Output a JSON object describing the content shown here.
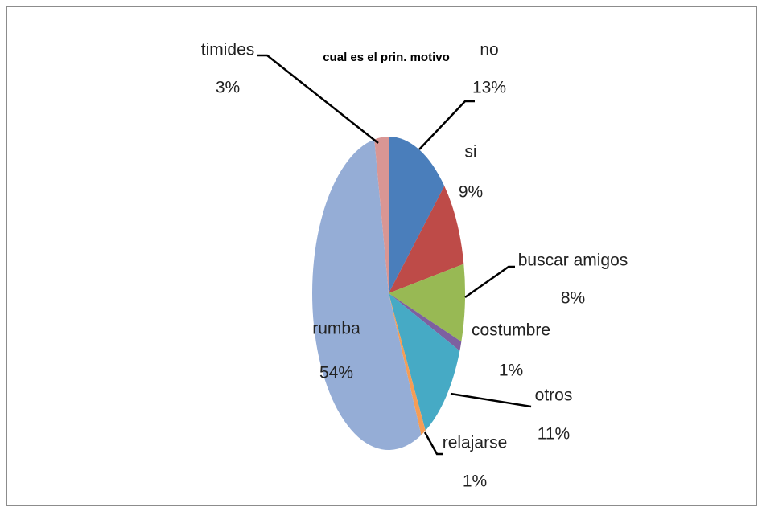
{
  "chart_data": {
    "type": "pie",
    "title": "cual es el prin. motivo",
    "categories": [
      "no",
      "si",
      "buscar amigos",
      "costumbre",
      "otros",
      "relajarse",
      "rumba",
      "timides"
    ],
    "values": [
      13,
      9,
      8,
      1,
      11,
      1,
      54,
      3
    ],
    "value_labels": [
      "13%",
      "9%",
      "8%",
      "1%",
      "11%",
      "1%",
      "54%",
      "3%"
    ],
    "colors": [
      "#4a7ebb",
      "#be4b48",
      "#98b954",
      "#7d60a0",
      "#46aac5",
      "#f59d56",
      "#95add6",
      "#d99694"
    ]
  }
}
